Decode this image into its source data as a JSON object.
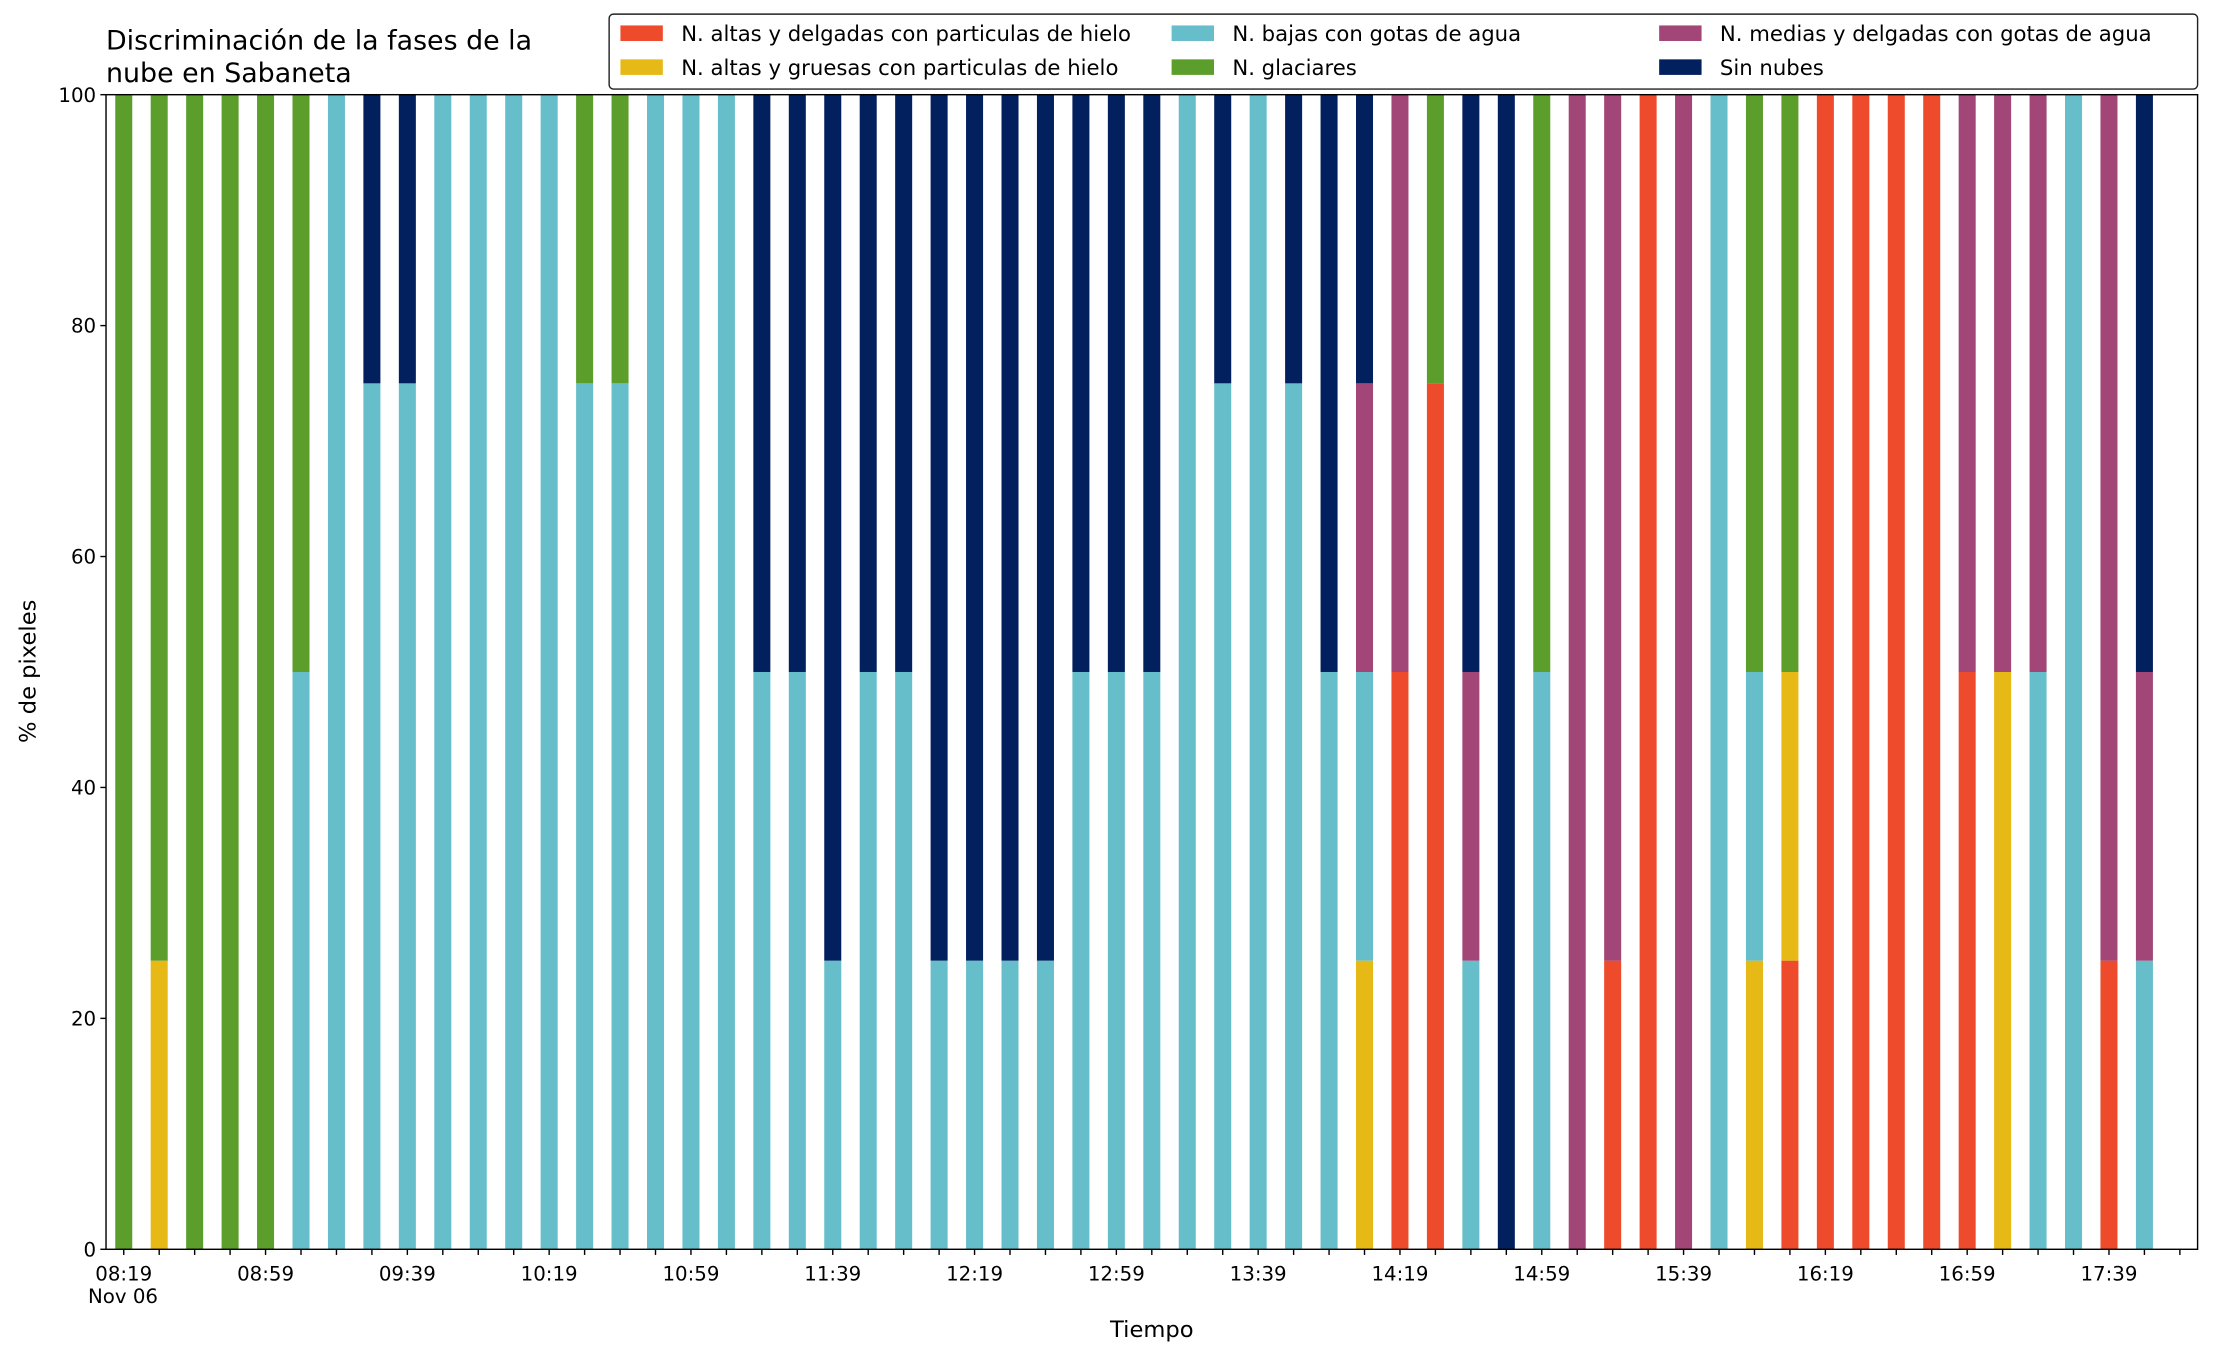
{
  "chart_data": {
    "type": "stacked_bar",
    "title": [
      "Discriminación de la fases de la",
      "nube en Sabaneta"
    ],
    "x_label": "Tiempo",
    "y_label": "% de pixeles",
    "date_label": "Nov 06",
    "categories": [
      "08:19",
      null,
      null,
      null,
      "08:59",
      null,
      null,
      null,
      "09:39",
      null,
      null,
      null,
      "10:19",
      null,
      null,
      null,
      "10:59",
      null,
      null,
      null,
      "11:39",
      null,
      null,
      null,
      "12:19",
      null,
      null,
      null,
      "12:59",
      null,
      null,
      null,
      "13:39",
      null,
      null,
      null,
      "14:19",
      null,
      null,
      null,
      "14:59",
      null,
      null,
      null,
      "15:39",
      null,
      null,
      null,
      "16:19",
      null,
      null,
      null,
      "16:59",
      null,
      null,
      null,
      "17:39",
      null
    ],
    "ylim": [
      0,
      100
    ],
    "yticks": [
      0,
      20,
      40,
      60,
      80,
      100
    ],
    "legend": "top-right",
    "series": [
      {
        "name": "N. altas y delgadas con particulas de hielo",
        "color": "#ee4a2c",
        "values": [
          0,
          0,
          0,
          0,
          0,
          0,
          0,
          0,
          0,
          0,
          0,
          0,
          0,
          0,
          0,
          0,
          0,
          0,
          0,
          0,
          0,
          0,
          0,
          0,
          0,
          0,
          0,
          0,
          0,
          0,
          0,
          0,
          0,
          0,
          0,
          0,
          50,
          75,
          0,
          0,
          0,
          0,
          25,
          100,
          0,
          0,
          0,
          25,
          100,
          100,
          100,
          100,
          50,
          0,
          0,
          0,
          25,
          0
        ]
      },
      {
        "name": "N. altas y gruesas con particulas de hielo",
        "color": "#e6b916",
        "values": [
          0,
          25,
          0,
          0,
          0,
          0,
          0,
          0,
          0,
          0,
          0,
          0,
          0,
          0,
          0,
          0,
          0,
          0,
          0,
          0,
          0,
          0,
          0,
          0,
          0,
          0,
          0,
          0,
          0,
          0,
          0,
          0,
          0,
          0,
          0,
          25,
          0,
          0,
          0,
          0,
          0,
          0,
          0,
          0,
          0,
          0,
          25,
          25,
          0,
          0,
          0,
          0,
          0,
          50,
          0,
          0,
          0,
          0
        ]
      },
      {
        "name": "N. bajas con gotas de agua",
        "color": "#65bec9",
        "values": [
          0,
          0,
          0,
          0,
          0,
          50,
          100,
          75,
          75,
          100,
          100,
          100,
          100,
          75,
          75,
          100,
          100,
          100,
          50,
          50,
          25,
          50,
          50,
          25,
          25,
          25,
          25,
          50,
          50,
          50,
          100,
          75,
          100,
          75,
          50,
          25,
          0,
          0,
          25,
          0,
          50,
          0,
          0,
          0,
          0,
          100,
          25,
          0,
          0,
          0,
          0,
          0,
          0,
          0,
          50,
          100,
          0,
          25
        ]
      },
      {
        "name": "N. glaciares",
        "color": "#5c9e2c",
        "values": [
          100,
          75,
          100,
          100,
          100,
          50,
          0,
          0,
          0,
          0,
          0,
          0,
          0,
          25,
          25,
          0,
          0,
          0,
          0,
          0,
          0,
          0,
          0,
          0,
          0,
          0,
          0,
          0,
          0,
          0,
          0,
          0,
          0,
          0,
          0,
          0,
          0,
          25,
          0,
          0,
          50,
          0,
          0,
          0,
          0,
          0,
          50,
          50,
          0,
          0,
          0,
          0,
          0,
          0,
          0,
          0,
          0,
          0
        ]
      },
      {
        "name": "N. medias y delgadas con gotas de agua",
        "color": "#a24577",
        "values": [
          0,
          0,
          0,
          0,
          0,
          0,
          0,
          0,
          0,
          0,
          0,
          0,
          0,
          0,
          0,
          0,
          0,
          0,
          0,
          0,
          0,
          0,
          0,
          0,
          0,
          0,
          0,
          0,
          0,
          0,
          0,
          0,
          0,
          0,
          0,
          25,
          50,
          0,
          25,
          0,
          0,
          100,
          75,
          0,
          100,
          0,
          0,
          0,
          0,
          0,
          0,
          0,
          50,
          50,
          50,
          0,
          75,
          25
        ]
      },
      {
        "name": "Sin nubes",
        "color": "#021f5e",
        "values": [
          0,
          0,
          0,
          0,
          0,
          0,
          0,
          25,
          25,
          0,
          0,
          0,
          0,
          0,
          0,
          0,
          0,
          0,
          50,
          50,
          75,
          50,
          50,
          75,
          75,
          75,
          75,
          50,
          50,
          50,
          0,
          25,
          0,
          25,
          50,
          25,
          0,
          0,
          50,
          100,
          0,
          0,
          0,
          0,
          0,
          0,
          0,
          0,
          0,
          0,
          0,
          0,
          0,
          0,
          0,
          0,
          0,
          50
        ]
      }
    ]
  }
}
